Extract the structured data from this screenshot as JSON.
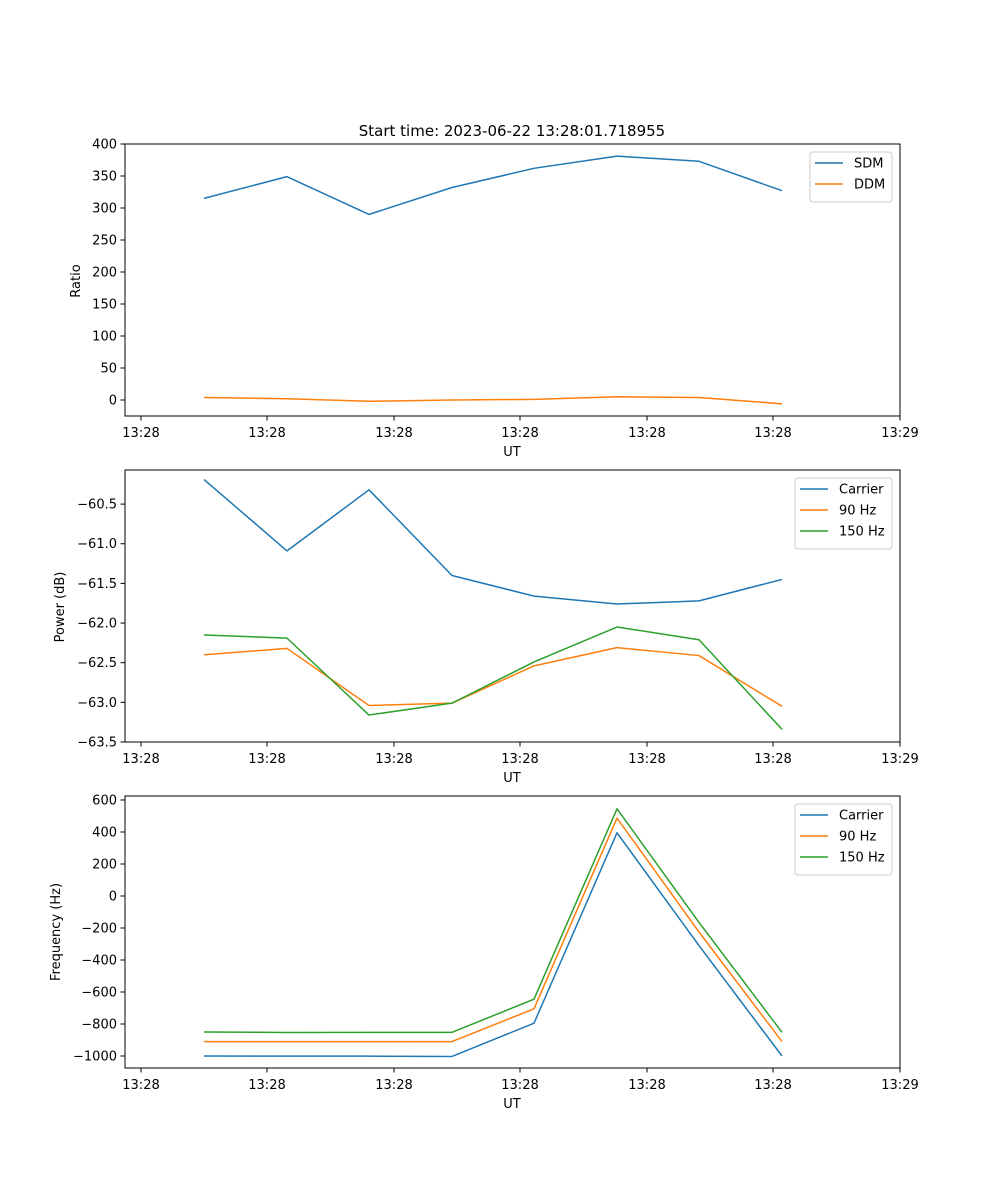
{
  "chart_data": [
    {
      "type": "line",
      "title": "Start time: 2023-06-22 13:28:01.718955",
      "xlabel": "UT",
      "ylabel": "Ratio",
      "x_tick_labels": [
        "13:28",
        "13:28",
        "13:28",
        "13:28",
        "13:28",
        "13:28",
        "13:29"
      ],
      "y_ticks": [
        0,
        50,
        100,
        150,
        200,
        250,
        300,
        350,
        400
      ],
      "y_tick_labels": [
        "0",
        "50",
        "100",
        "150",
        "200",
        "250",
        "300",
        "350",
        "400"
      ],
      "ylim": [
        -25,
        400
      ],
      "legend_position": "top-right",
      "grid": false,
      "series": [
        {
          "name": "SDM",
          "color": "#1f77b4",
          "values": [
            315,
            349,
            290,
            332,
            362,
            381,
            373,
            327
          ]
        },
        {
          "name": "DDM",
          "color": "#ff7f0e",
          "values": [
            4,
            2,
            -2,
            0,
            1,
            5,
            4,
            -6
          ]
        }
      ]
    },
    {
      "type": "line",
      "title": "",
      "xlabel": "UT",
      "ylabel": "Power (dB)",
      "x_tick_labels": [
        "13:28",
        "13:28",
        "13:28",
        "13:28",
        "13:28",
        "13:28",
        "13:29"
      ],
      "y_ticks": [
        -60.5,
        -61.0,
        -61.5,
        -62.0,
        -62.5,
        -63.0,
        -63.5
      ],
      "y_tick_labels": [
        "−60.5",
        "−61.0",
        "−61.5",
        "−62.0",
        "−62.5",
        "−63.0",
        "−63.5"
      ],
      "ylim": [
        -63.5,
        -60.07
      ],
      "legend_position": "top-right",
      "grid": false,
      "series": [
        {
          "name": "Carrier",
          "color": "#1f77b4",
          "values": [
            -60.19,
            -61.09,
            -60.32,
            -61.4,
            -61.66,
            -61.76,
            -61.72,
            -61.45
          ]
        },
        {
          "name": "90 Hz",
          "color": "#ff7f0e",
          "values": [
            -62.4,
            -62.32,
            -63.04,
            -63.01,
            -62.54,
            -62.31,
            -62.41,
            -63.05
          ]
        },
        {
          "name": "150 Hz",
          "color": "#2ca02c",
          "values": [
            -62.15,
            -62.19,
            -63.16,
            -63.01,
            -62.49,
            -62.05,
            -62.21,
            -63.34
          ]
        }
      ]
    },
    {
      "type": "line",
      "title": "",
      "xlabel": "UT",
      "ylabel": "Frequency (Hz)",
      "x_tick_labels": [
        "13:28",
        "13:28",
        "13:28",
        "13:28",
        "13:28",
        "13:28",
        "13:29"
      ],
      "y_ticks": [
        600,
        400,
        200,
        0,
        -200,
        -400,
        -600,
        -800,
        -1000
      ],
      "y_tick_labels": [
        "600",
        "400",
        "200",
        "0",
        "−200",
        "−400",
        "−600",
        "−800",
        "−1000"
      ],
      "ylim": [
        -1075,
        625
      ],
      "legend_position": "top-right",
      "grid": false,
      "series": [
        {
          "name": "Carrier",
          "color": "#1f77b4",
          "values": [
            -1000,
            -1001,
            -1001,
            -1003,
            -795,
            395,
            -310,
            -1000
          ]
        },
        {
          "name": "90 Hz",
          "color": "#ff7f0e",
          "values": [
            -910,
            -910,
            -910,
            -910,
            -705,
            487,
            -225,
            -910
          ]
        },
        {
          "name": "150 Hz",
          "color": "#2ca02c",
          "values": [
            -850,
            -853,
            -852,
            -852,
            -645,
            545,
            -165,
            -852
          ]
        }
      ]
    }
  ]
}
